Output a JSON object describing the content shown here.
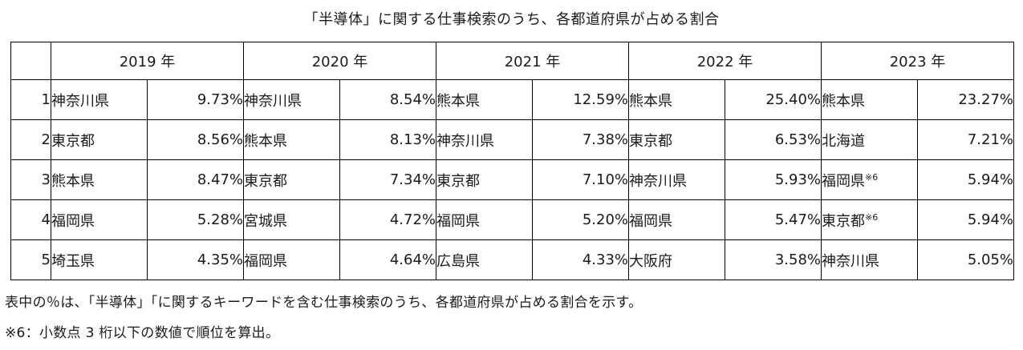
{
  "page": {
    "title": "「半導体」に関する仕事検索のうち、各都道府県が占める割合",
    "footnotes": [
      "表中の％は、「半導体」「に関するキーワードを含む仕事検索のうち、各都道府県が占める割合を示す。",
      "※6：小数点 3 桁以下の数値で順位を算出。"
    ]
  },
  "colors": {
    "background": "#ffffff",
    "text": "#1b1b1b",
    "border": "#000000"
  },
  "table": {
    "type": "table",
    "title": "「半導体」に関する仕事検索のうち、各都道府県が占める割合",
    "rank_header": "",
    "year_headers": [
      "2019 年",
      "2020 年",
      "2021 年",
      "2022 年",
      "2023 年"
    ],
    "rows": [
      {
        "rank": "1",
        "cells": [
          {
            "name": "神奈川県",
            "value": "9.73%"
          },
          {
            "name": "神奈川県",
            "value": "8.54%"
          },
          {
            "name": "熊本県",
            "value": "12.59%"
          },
          {
            "name": "熊本県",
            "value": "25.40%"
          },
          {
            "name": "熊本県",
            "value": "23.27%"
          }
        ]
      },
      {
        "rank": "2",
        "cells": [
          {
            "name": "東京都",
            "value": "8.56%"
          },
          {
            "name": "熊本県",
            "value": "8.13%"
          },
          {
            "name": "神奈川県",
            "value": "7.38%"
          },
          {
            "name": "東京都",
            "value": "6.53%"
          },
          {
            "name": "北海道",
            "value": "7.21%"
          }
        ]
      },
      {
        "rank": "3",
        "cells": [
          {
            "name": "熊本県",
            "value": "8.47%"
          },
          {
            "name": "東京都",
            "value": "7.34%"
          },
          {
            "name": "東京都",
            "value": "7.10%"
          },
          {
            "name": "神奈川県",
            "value": "5.93%"
          },
          {
            "name": "福岡県",
            "note": "※6",
            "value": "5.94%"
          }
        ]
      },
      {
        "rank": "4",
        "cells": [
          {
            "name": "福岡県",
            "value": "5.28%"
          },
          {
            "name": "宮城県",
            "value": "4.72%"
          },
          {
            "name": "福岡県",
            "value": "5.20%"
          },
          {
            "name": "福岡県",
            "value": "5.47%"
          },
          {
            "name": "東京都",
            "note": "※6",
            "value": "5.94%"
          }
        ]
      },
      {
        "rank": "5",
        "cells": [
          {
            "name": "埼玉県",
            "value": "4.35%"
          },
          {
            "name": "福岡県",
            "value": "4.64%"
          },
          {
            "name": "広島県",
            "value": "4.33%"
          },
          {
            "name": "大阪府",
            "value": "3.58%"
          },
          {
            "name": "神奈川県",
            "value": "5.05%"
          }
        ]
      }
    ]
  }
}
